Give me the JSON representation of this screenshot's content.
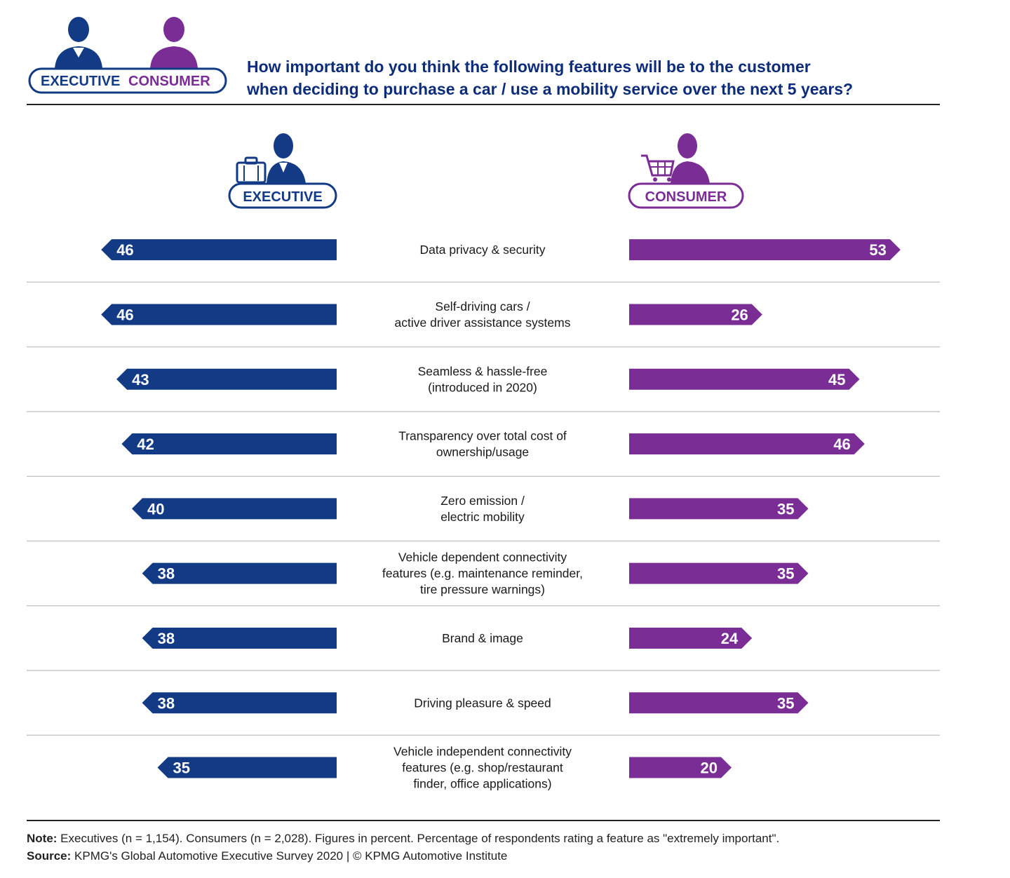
{
  "header": {
    "badge_executive": "EXECUTIVE",
    "badge_consumer": "CONSUMER",
    "title_line1": "How important do you think the following features will be to the customer",
    "title_line2": "when deciding to purchase a car / use a mobility service over the next 5 years?"
  },
  "colors": {
    "executive": "#123a85",
    "consumer": "#7b2d96",
    "navy_text": "#0d2c7a"
  },
  "icons": {
    "executive": "briefcase-person-icon",
    "consumer": "shopping-cart-person-icon"
  },
  "chart_data": {
    "type": "bar",
    "layout": "butterfly",
    "series": [
      {
        "name": "EXECUTIVE",
        "values": [
          46,
          46,
          43,
          42,
          40,
          38,
          38,
          38,
          35
        ]
      },
      {
        "name": "CONSUMER",
        "values": [
          53,
          26,
          45,
          46,
          35,
          35,
          24,
          35,
          20
        ]
      }
    ],
    "categories": [
      [
        "Data privacy & security"
      ],
      [
        "Self-driving cars /",
        "active driver assistance systems"
      ],
      [
        "Seamless & hassle-free",
        "(introduced in 2020)"
      ],
      [
        "Transparency over total cost of",
        "ownership/usage"
      ],
      [
        "Zero emission /",
        "electric mobility"
      ],
      [
        "Vehicle dependent connectivity",
        "features (e.g. maintenance reminder,",
        "tire pressure warnings)"
      ],
      [
        "Brand & image"
      ],
      [
        "Driving pleasure & speed"
      ],
      [
        "Vehicle independent connectivity",
        "features (e.g. shop/restaurant",
        "finder, office applications)"
      ]
    ]
  },
  "notes": {
    "note_label": "Note:",
    "note_text": " Executives (n = 1,154). Consumers (n = 2,028). Figures in percent. Percentage of respondents rating a feature as \"extremely important\".",
    "source_label": "Source:",
    "source_text": " KPMG's Global Automotive Executive Survey 2020 | © KPMG Automotive Institute"
  }
}
